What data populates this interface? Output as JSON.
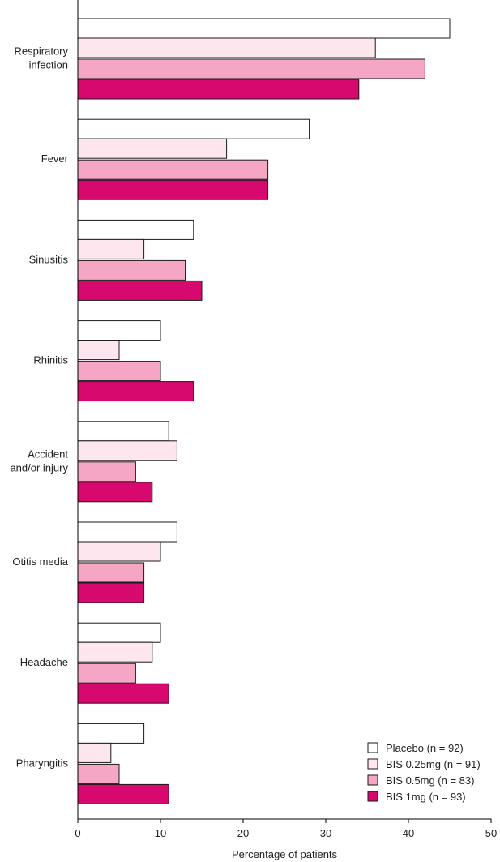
{
  "chart_data": {
    "type": "bar",
    "orientation": "horizontal",
    "categories": [
      [
        "Respiratory",
        "infection"
      ],
      [
        "Fever"
      ],
      [
        "Sinusitis"
      ],
      [
        "Rhinitis"
      ],
      [
        "Accident",
        "and/or injury"
      ],
      [
        "Otitis media"
      ],
      [
        "Headache"
      ],
      [
        "Pharyngitis"
      ]
    ],
    "series": [
      {
        "name": "Placebo (n = 92)",
        "color": "#ffffff",
        "values": [
          45,
          28,
          14,
          10,
          11,
          12,
          10,
          8
        ]
      },
      {
        "name": "BIS 0.25mg (n = 91)",
        "color": "#fde6ee",
        "values": [
          36,
          18,
          8,
          5,
          12,
          10,
          9,
          4
        ]
      },
      {
        "name": "BIS 0.5mg (n = 83)",
        "color": "#f4a6c4",
        "values": [
          42,
          23,
          13,
          10,
          7,
          8,
          7,
          5
        ]
      },
      {
        "name": "BIS 1mg (n = 93)",
        "color": "#d8096e",
        "values": [
          34,
          23,
          15,
          14,
          9,
          8,
          11,
          11
        ]
      }
    ],
    "xlabel": "Percentage of patients",
    "ylabel": "",
    "title": "",
    "xlim": [
      0,
      50
    ],
    "xticks": [
      0,
      10,
      20,
      30,
      40,
      50
    ],
    "grid": false,
    "legend_position": "bottom-right"
  }
}
